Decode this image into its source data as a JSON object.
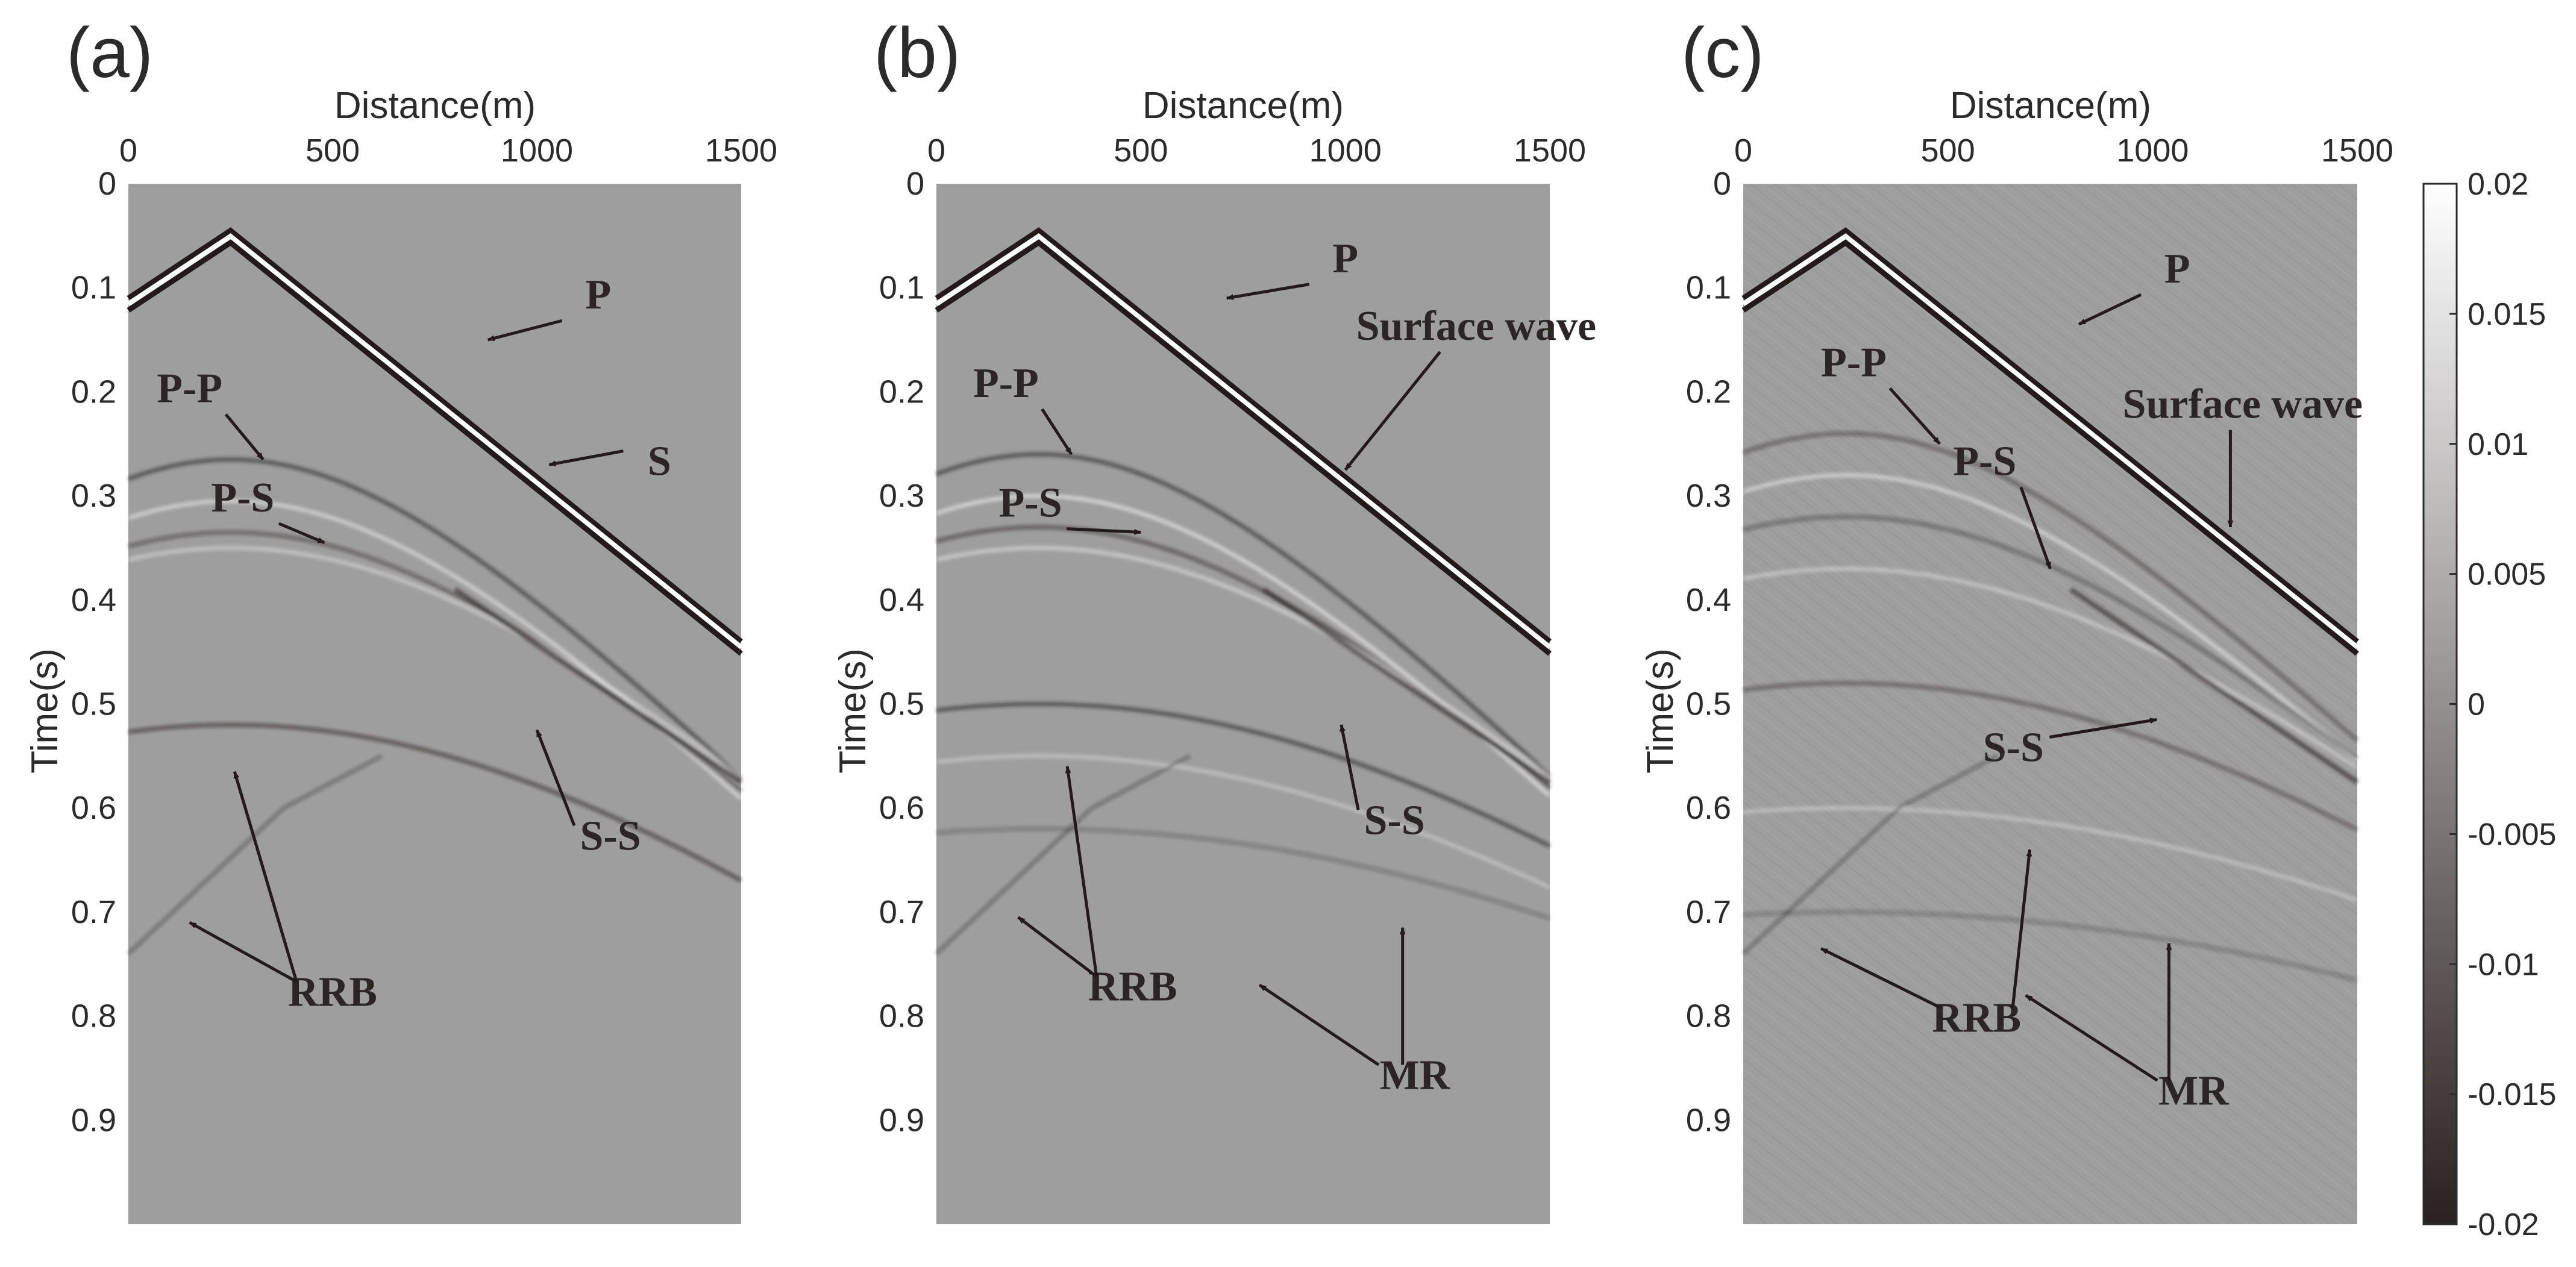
{
  "colorbar": {
    "ticks": [
      {
        "value": 0.02,
        "label": "0.02"
      },
      {
        "value": 0.015,
        "label": "0.015"
      },
      {
        "value": 0.01,
        "label": "0.01"
      },
      {
        "value": 0.005,
        "label": "0.005"
      },
      {
        "value": 0,
        "label": "0"
      },
      {
        "value": -0.005,
        "label": "-0.005"
      },
      {
        "value": -0.01,
        "label": "-0.01"
      },
      {
        "value": -0.015,
        "label": "-0.015"
      },
      {
        "value": -0.02,
        "label": "-0.02"
      }
    ],
    "min": -0.02,
    "max": 0.02,
    "color_low": "#2a2020",
    "color_high": "#ffffff"
  },
  "colors": {
    "background_amplitude": "#9d9e9d",
    "event_dark": "#231b1b",
    "event_light": "#ffffff",
    "text": "#2b2525"
  },
  "chart_data": [
    {
      "type": "heatmap",
      "panel_label": "(a)",
      "xlabel": "Distance(m)",
      "ylabel": "Time(s)",
      "xlim": [
        0,
        1500
      ],
      "ylim": [
        0,
        1.0
      ],
      "xticks": [
        0,
        500,
        1000,
        1500
      ],
      "xtick_labels": [
        "0",
        "500",
        "1000",
        "1500"
      ],
      "yticks": [
        0,
        0.1,
        0.2,
        0.3,
        0.4,
        0.5,
        0.6,
        0.7,
        0.8,
        0.9
      ],
      "ytick_labels": [
        "0",
        "0.1",
        "0.2",
        "0.3",
        "0.4",
        "0.5",
        "0.6",
        "0.7",
        "0.8",
        "0.9"
      ],
      "source_position_m": 250,
      "annotations": [
        {
          "text": "P",
          "label_at": [
            1150,
            0.12
          ],
          "arrow_to": [
            880,
            0.15
          ]
        },
        {
          "text": "S",
          "label_at": [
            1300,
            0.28
          ],
          "arrow_to": [
            1030,
            0.27
          ]
        },
        {
          "text": "P-P",
          "label_at": [
            150,
            0.21
          ],
          "arrow_to": [
            330,
            0.265
          ]
        },
        {
          "text": "P-S",
          "label_at": [
            280,
            0.315
          ],
          "arrow_to": [
            480,
            0.345
          ]
        },
        {
          "text": "S-S",
          "label_at": [
            1180,
            0.64
          ],
          "arrow_to": [
            1000,
            0.525
          ]
        },
        {
          "text": "RRB",
          "label_at": [
            500,
            0.79
          ],
          "arrow_to": [
            260,
            0.565
          ]
        },
        {
          "text": "RRB",
          "label_at": [
            500,
            0.79
          ],
          "arrow_to": [
            150,
            0.71
          ]
        }
      ]
    },
    {
      "type": "heatmap",
      "panel_label": "(b)",
      "xlabel": "Distance(m)",
      "ylabel": "Time(s)",
      "xlim": [
        0,
        1500
      ],
      "ylim": [
        0,
        1.0
      ],
      "xticks": [
        0,
        500,
        1000,
        1500
      ],
      "xtick_labels": [
        "0",
        "500",
        "1000",
        "1500"
      ],
      "yticks": [
        0,
        0.1,
        0.2,
        0.3,
        0.4,
        0.5,
        0.6,
        0.7,
        0.8,
        0.9
      ],
      "ytick_labels": [
        "0",
        "0.1",
        "0.2",
        "0.3",
        "0.4",
        "0.5",
        "0.6",
        "0.7",
        "0.8",
        "0.9"
      ],
      "source_position_m": 250,
      "annotations": [
        {
          "text": "P",
          "label_at": [
            1000,
            0.085
          ],
          "arrow_to": [
            710,
            0.11
          ]
        },
        {
          "text": "Surface wave",
          "label_at": [
            1320,
            0.15
          ],
          "arrow_to": [
            1000,
            0.275
          ]
        },
        {
          "text": "P-P",
          "label_at": [
            170,
            0.205
          ],
          "arrow_to": [
            330,
            0.26
          ]
        },
        {
          "text": "P-S",
          "label_at": [
            230,
            0.32
          ],
          "arrow_to": [
            500,
            0.335
          ]
        },
        {
          "text": "S-S",
          "label_at": [
            1120,
            0.625
          ],
          "arrow_to": [
            990,
            0.52
          ]
        },
        {
          "text": "RRB",
          "label_at": [
            480,
            0.785
          ],
          "arrow_to": [
            320,
            0.56
          ]
        },
        {
          "text": "RRB",
          "label_at": [
            480,
            0.785
          ],
          "arrow_to": [
            200,
            0.705
          ]
        },
        {
          "text": "MR",
          "label_at": [
            1170,
            0.87
          ],
          "arrow_to": [
            790,
            0.77
          ]
        },
        {
          "text": "MR",
          "label_at": [
            1170,
            0.87
          ],
          "arrow_to": [
            1140,
            0.715
          ]
        }
      ]
    },
    {
      "type": "heatmap",
      "panel_label": "(c)",
      "xlabel": "Distance(m)",
      "ylabel": "Time(s)",
      "xlim": [
        0,
        1500
      ],
      "ylim": [
        0,
        1.0
      ],
      "xticks": [
        0,
        500,
        1000,
        1500
      ],
      "xtick_labels": [
        "0",
        "500",
        "1000",
        "1500"
      ],
      "yticks": [
        0,
        0.1,
        0.2,
        0.3,
        0.4,
        0.5,
        0.6,
        0.7,
        0.8,
        0.9
      ],
      "ytick_labels": [
        "0",
        "0.1",
        "0.2",
        "0.3",
        "0.4",
        "0.5",
        "0.6",
        "0.7",
        "0.8",
        "0.9"
      ],
      "source_position_m": 250,
      "annotations": [
        {
          "text": "P",
          "label_at": [
            1060,
            0.095
          ],
          "arrow_to": [
            820,
            0.135
          ]
        },
        {
          "text": "Surface wave",
          "label_at": [
            1220,
            0.225
          ],
          "arrow_to": [
            1190,
            0.33
          ]
        },
        {
          "text": "P-P",
          "label_at": [
            270,
            0.185
          ],
          "arrow_to": [
            480,
            0.25
          ]
        },
        {
          "text": "P-S",
          "label_at": [
            590,
            0.28
          ],
          "arrow_to": [
            750,
            0.37
          ]
        },
        {
          "text": "S-S",
          "label_at": [
            660,
            0.555
          ],
          "arrow_to": [
            1010,
            0.515
          ]
        },
        {
          "text": "RRB",
          "label_at": [
            570,
            0.815
          ],
          "arrow_to": [
            700,
            0.64
          ]
        },
        {
          "text": "RRB",
          "label_at": [
            570,
            0.815
          ],
          "arrow_to": [
            190,
            0.735
          ]
        },
        {
          "text": "MR",
          "label_at": [
            1100,
            0.885
          ],
          "arrow_to": [
            690,
            0.78
          ]
        },
        {
          "text": "MR",
          "label_at": [
            1100,
            0.885
          ],
          "arrow_to": [
            1040,
            0.73
          ]
        }
      ]
    }
  ]
}
